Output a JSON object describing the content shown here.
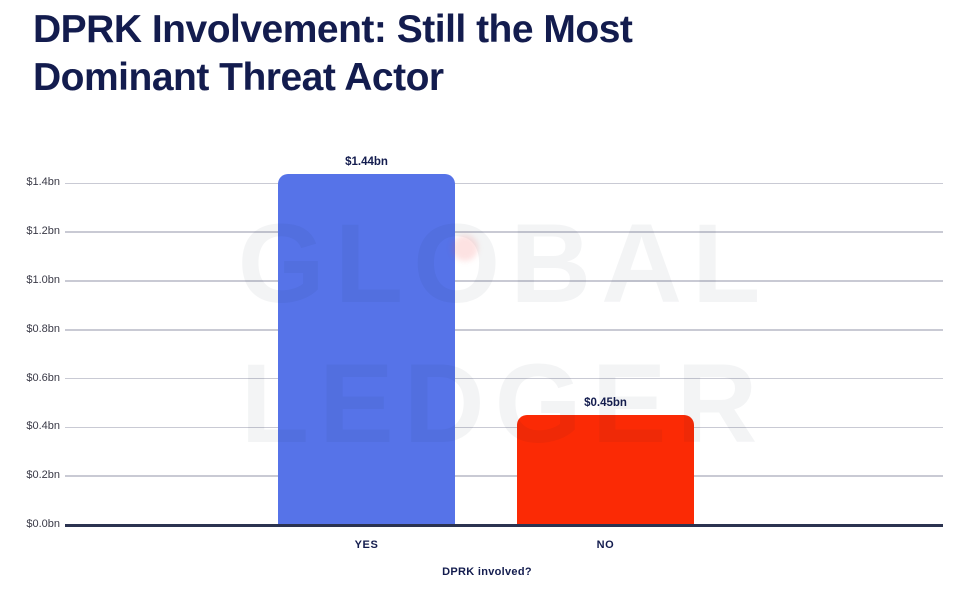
{
  "title": {
    "lines": [
      "DPRK Involvement: Still the Most",
      "Dominant Threat Actor"
    ],
    "full": "DPRK Involvement: Still the Most Dominant Threat Actor",
    "color": "#131c4e"
  },
  "watermark": {
    "lines": [
      "GLOBAL",
      "LEDGER"
    ],
    "dot_color": "#f54b4b"
  },
  "chart_data": {
    "type": "bar",
    "title": "DPRK Involvement: Still the Most Dominant Threat Actor",
    "xlabel": "DPRK involved?",
    "ylabel": "",
    "categories": [
      "YES",
      "NO"
    ],
    "values": [
      1.44,
      0.45
    ],
    "value_labels": [
      "$1.44bn",
      "$0.45bn"
    ],
    "bar_colors": [
      "#5673e8",
      "#fb2a05"
    ],
    "ylim": [
      0,
      1.4
    ],
    "ytick_step": 0.2,
    "yticks": [
      0,
      0.2,
      0.4,
      0.6,
      0.8,
      1.0,
      1.2,
      1.4
    ],
    "ytick_labels": [
      "$0.0bn",
      "$0.2bn",
      "$0.4bn",
      "$0.6bn",
      "$0.8bn",
      "$1.0bn",
      "$1.2bn",
      "$1.4bn"
    ],
    "grid": true,
    "legend": false,
    "colors": {
      "gridline": "#c9cad4",
      "axis_line": "#2b3350",
      "tick_label": "#3a3a47",
      "data_label": "#131c4e"
    }
  }
}
